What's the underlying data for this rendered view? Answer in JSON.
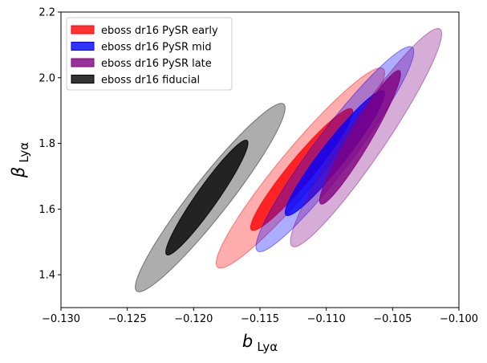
{
  "chart_data": {
    "type": "contour",
    "title": "",
    "xlabel": {
      "symbol": "b",
      "subscript": "Lyα"
    },
    "ylabel": {
      "symbol": "β",
      "subscript": "Lyα"
    },
    "xlim": [
      -0.13,
      -0.1
    ],
    "ylim": [
      1.3,
      2.2
    ],
    "xticks": [
      -0.13,
      -0.125,
      -0.12,
      -0.115,
      -0.11,
      -0.105,
      -0.1
    ],
    "xtick_labels": [
      "−0.130",
      "−0.125",
      "−0.120",
      "−0.115",
      "−0.110",
      "−0.105",
      "−0.100"
    ],
    "yticks": [
      1.4,
      1.6,
      1.8,
      2.0,
      2.2
    ],
    "ytick_labels": [
      "1.4",
      "1.6",
      "1.8",
      "2.0",
      "2.2"
    ],
    "grid": false,
    "legend_position": "top-left",
    "series": [
      {
        "name": "eboss dr16 PySR early",
        "color": "#ff0000",
        "inner": {
          "x_range": [
            -0.1157,
            -0.108
          ],
          "y_range": [
            1.535,
            1.906
          ]
        },
        "outer": {
          "x_range": [
            -0.1183,
            -0.1056
          ],
          "y_range": [
            1.42,
            2.03
          ]
        }
      },
      {
        "name": "eboss dr16 PySR mid",
        "color": "#0000ff",
        "inner": {
          "x_range": [
            -0.1131,
            -0.1056
          ],
          "y_range": [
            1.58,
            1.961
          ]
        },
        "outer": {
          "x_range": [
            -0.1153,
            -0.1034
          ],
          "y_range": [
            1.47,
            2.095
          ]
        }
      },
      {
        "name": "eboss dr16 PySR late",
        "color": "#800080",
        "inner": {
          "x_range": [
            -0.1105,
            -0.1044
          ],
          "y_range": [
            1.615,
            2.022
          ]
        },
        "outer": {
          "x_range": [
            -0.1127,
            -0.1013
          ],
          "y_range": [
            1.485,
            2.15
          ]
        }
      },
      {
        "name": "eboss dr16 fiducial",
        "color": "#000000",
        "inner": {
          "x_range": [
            -0.1221,
            -0.1159
          ],
          "y_range": [
            1.46,
            1.81
          ]
        },
        "outer": {
          "x_range": [
            -0.1244,
            -0.1131
          ],
          "y_range": [
            1.348,
            1.922
          ]
        }
      }
    ]
  }
}
